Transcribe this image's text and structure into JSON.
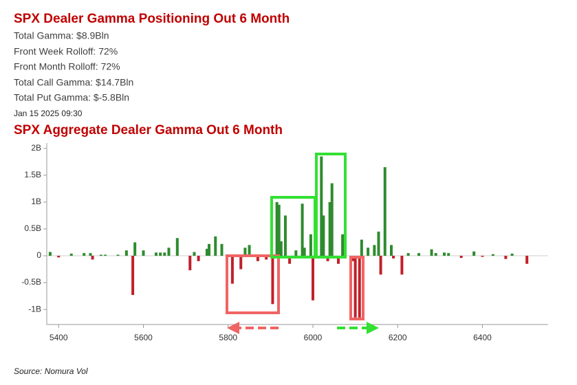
{
  "header": {
    "title": "SPX Dealer Gamma Positioning Out 6 Month",
    "lines": [
      "Total Gamma: $8.9Bln",
      "Front Week Rolloff: 72%",
      "Front Month Rolloff: 72%",
      "Total Call Gamma: $14.7Bln",
      "Total Put Gamma: $-5.8Bln"
    ],
    "timestamp": "Jan 15 2025 09:30"
  },
  "chart_data": {
    "type": "bar",
    "title": "SPX Aggregate Dealer Gamma Out 6 Month",
    "x": [
      5380,
      5400,
      5430,
      5460,
      5475,
      5480,
      5500,
      5510,
      5540,
      5560,
      5575,
      5580,
      5600,
      5630,
      5640,
      5650,
      5660,
      5680,
      5710,
      5720,
      5730,
      5750,
      5755,
      5770,
      5785,
      5810,
      5830,
      5840,
      5850,
      5870,
      5890,
      5905,
      5915,
      5920,
      5925,
      5935,
      5945,
      5960,
      5975,
      5980,
      5995,
      6000,
      6005,
      6020,
      6025,
      6035,
      6040,
      6045,
      6060,
      6070,
      6095,
      6100,
      6110,
      6115,
      6130,
      6145,
      6155,
      6160,
      6170,
      6185,
      6190,
      6210,
      6225,
      6250,
      6280,
      6290,
      6310,
      6320,
      6350,
      6380,
      6400,
      6425,
      6455,
      6470,
      6505
    ],
    "values": [
      0.07,
      -0.03,
      0.04,
      0.05,
      0.05,
      -0.07,
      0.02,
      0.02,
      0.02,
      0.1,
      -0.73,
      0.25,
      0.1,
      0.06,
      0.06,
      0.06,
      0.15,
      0.33,
      -0.27,
      0.07,
      -0.1,
      0.13,
      0.22,
      0.36,
      0.22,
      -0.52,
      -0.25,
      0.15,
      0.2,
      -0.1,
      -0.07,
      -0.9,
      1.0,
      0.95,
      0.27,
      0.75,
      -0.15,
      0.1,
      0.97,
      0.15,
      0.4,
      -0.83,
      1.0,
      1.85,
      0.75,
      -0.1,
      1.0,
      1.35,
      -0.15,
      0.4,
      -0.1,
      -1.15,
      -1.15,
      0.3,
      0.15,
      0.2,
      0.45,
      -0.35,
      1.65,
      0.2,
      -0.05,
      -0.35,
      0.05,
      0.05,
      0.12,
      0.05,
      0.06,
      0.05,
      -0.04,
      0.08,
      -0.02,
      0.03,
      -0.06,
      0.04,
      -0.15
    ],
    "colors": {
      "positive": "#2e8b2e",
      "negative": "#c0202a"
    },
    "xlim": [
      5372,
      6555
    ],
    "xticks": [
      5400,
      5600,
      5800,
      6000,
      6200,
      6400
    ],
    "ylim": [
      -1.28,
      2.1
    ],
    "yticks": [
      {
        "value": 2,
        "label": "2B"
      },
      {
        "value": 1.5,
        "label": "1.5B"
      },
      {
        "value": 1,
        "label": "1B"
      },
      {
        "value": 0.5,
        "label": "0.5B"
      },
      0,
      {
        "value": -0.5,
        "label": "-0.5B"
      },
      {
        "value": -1,
        "label": "-1B"
      }
    ]
  },
  "footer": {
    "source": "Source: Nomura Vol"
  }
}
